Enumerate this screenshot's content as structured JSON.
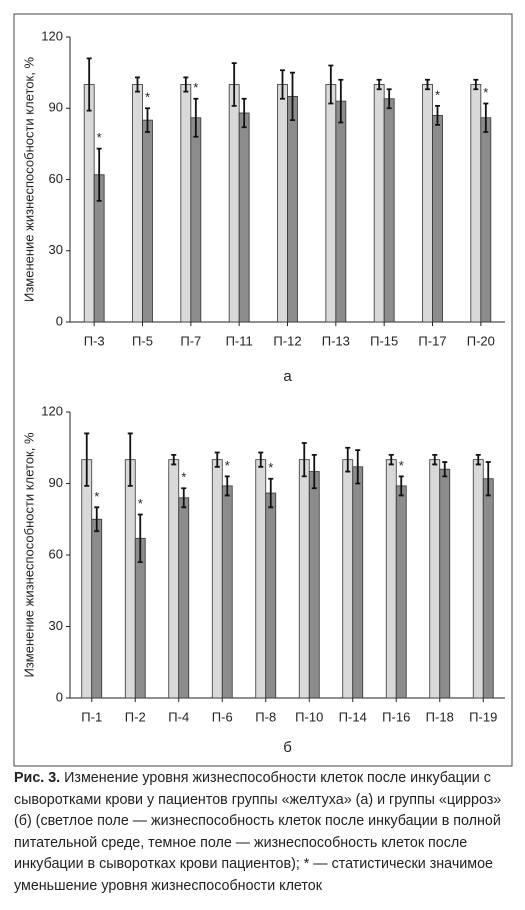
{
  "chart_data": [
    {
      "type": "bar",
      "label": "а",
      "y_label": "Изменение жизнеспособности клеток, %",
      "categories": [
        "П-3",
        "П-5",
        "П-7",
        "П-11",
        "П-12",
        "П-13",
        "П-15",
        "П-17",
        "П-20"
      ],
      "series": [
        {
          "color": "#d9d9d9",
          "values": [
            100,
            100,
            100,
            100,
            100,
            100,
            100,
            100,
            100
          ],
          "errors": [
            11,
            3,
            3,
            9,
            6,
            8,
            2,
            2,
            2
          ]
        },
        {
          "color": "#8c8c8c",
          "values": [
            62,
            85,
            86,
            88,
            95,
            93,
            94,
            87,
            86
          ],
          "errors": [
            11,
            5,
            8,
            6,
            10,
            9,
            4,
            4,
            6
          ]
        }
      ],
      "annotations": [
        "*",
        "*",
        "*",
        null,
        null,
        null,
        null,
        "*",
        "*"
      ],
      "ylim": [
        0,
        120
      ],
      "yticks": [
        0,
        30,
        60,
        90,
        120
      ],
      "grid": false
    },
    {
      "type": "bar",
      "label": "б",
      "y_label": "Изменение жизнеспособности клеток, %",
      "categories": [
        "П-1",
        "П-2",
        "П-4",
        "П-6",
        "П-8",
        "П-10",
        "П-14",
        "П-16",
        "П-18",
        "П-19"
      ],
      "series": [
        {
          "color": "#d9d9d9",
          "values": [
            100,
            100,
            100,
            100,
            100,
            100,
            100,
            100,
            100,
            100
          ],
          "errors": [
            11,
            11,
            2,
            3,
            3,
            7,
            5,
            2,
            2,
            2
          ]
        },
        {
          "color": "#8c8c8c",
          "values": [
            75,
            67,
            84,
            89,
            86,
            95,
            97,
            89,
            96,
            92
          ],
          "errors": [
            5,
            10,
            4,
            4,
            6,
            7,
            7,
            4,
            3,
            7
          ]
        }
      ],
      "annotations": [
        "*",
        "*",
        "*",
        "*",
        "*",
        null,
        null,
        "*",
        null,
        null
      ],
      "ylim": [
        0,
        120
      ],
      "yticks": [
        0,
        30,
        60,
        90,
        120
      ],
      "grid": false
    }
  ],
  "caption": {
    "label": "Рис. 3.",
    "text": "Изменение уровня жизнеспособности клеток после инкубации с сыворотками крови у пациентов группы «желтуха» (а) и группы «цирроз» (б) (светлое поле — жизнеспособность клеток после инкубации в полной питательной среде, темное поле — жизнеспособность клеток после инкубации в сыворотках крови пациентов); * — статистически значимое уменьшение уровня жизнеспособности клеток"
  }
}
